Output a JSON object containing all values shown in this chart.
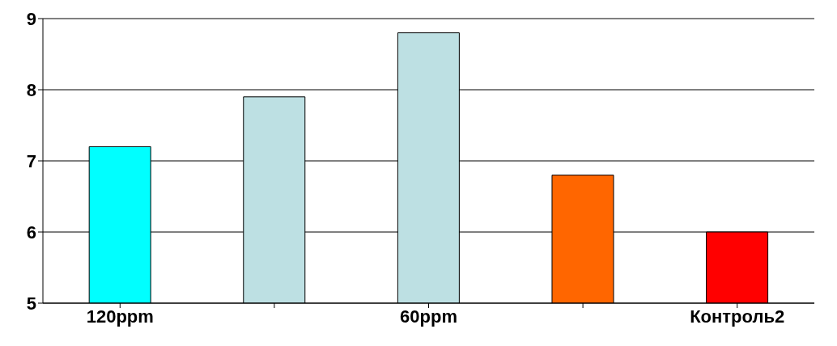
{
  "chart_data": {
    "type": "bar",
    "categories": [
      "120ppm",
      null,
      "60ppm",
      null,
      "Контроль2"
    ],
    "values": [
      7.2,
      7.9,
      8.8,
      6.8,
      6.0
    ],
    "colors": [
      "#00ffff",
      "#bde0e3",
      "#bde0e3",
      "#ff6600",
      "#ff0000"
    ],
    "ylim": [
      5,
      9
    ],
    "yticks": [
      5,
      6,
      7,
      8,
      9
    ],
    "grid": "y"
  }
}
